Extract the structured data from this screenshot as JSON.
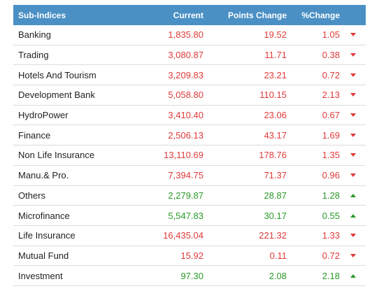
{
  "header": {
    "name": "Sub-Indices",
    "current": "Current",
    "points_change": "Points Change",
    "pct_change": "%Change"
  },
  "colors": {
    "header_bg": "#4a90c4",
    "negative": "#e0393a",
    "positive": "#2a9a2a"
  },
  "rows": [
    {
      "name": "Banking",
      "current": "1,835.80",
      "points": "19.52",
      "pct": "1.05",
      "direction": "down"
    },
    {
      "name": "Trading",
      "current": "3,080.87",
      "points": "11.71",
      "pct": "0.38",
      "direction": "down"
    },
    {
      "name": "Hotels And Tourism",
      "current": "3,209.83",
      "points": "23.21",
      "pct": "0.72",
      "direction": "down"
    },
    {
      "name": "Development Bank",
      "current": "5,058.80",
      "points": "110.15",
      "pct": "2.13",
      "direction": "down"
    },
    {
      "name": "HydroPower",
      "current": "3,410.40",
      "points": "23.06",
      "pct": "0.67",
      "direction": "down"
    },
    {
      "name": "Finance",
      "current": "2,506.13",
      "points": "43.17",
      "pct": "1.69",
      "direction": "down"
    },
    {
      "name": "Non Life Insurance",
      "current": "13,110.69",
      "points": "178.76",
      "pct": "1.35",
      "direction": "down"
    },
    {
      "name": "Manu.& Pro.",
      "current": "7,394.75",
      "points": "71.37",
      "pct": "0.96",
      "direction": "down"
    },
    {
      "name": "Others",
      "current": "2,279.87",
      "points": "28.87",
      "pct": "1.28",
      "direction": "up"
    },
    {
      "name": "Microfinance",
      "current": "5,547.83",
      "points": "30.17",
      "pct": "0.55",
      "direction": "up"
    },
    {
      "name": "Life Insurance",
      "current": "16,435.04",
      "points": "221.32",
      "pct": "1.33",
      "direction": "down"
    },
    {
      "name": "Mutual Fund",
      "current": "15.92",
      "points": "0.11",
      "pct": "0.72",
      "direction": "down"
    },
    {
      "name": "Investment",
      "current": "97.30",
      "points": "2.08",
      "pct": "2.18",
      "direction": "up"
    }
  ]
}
